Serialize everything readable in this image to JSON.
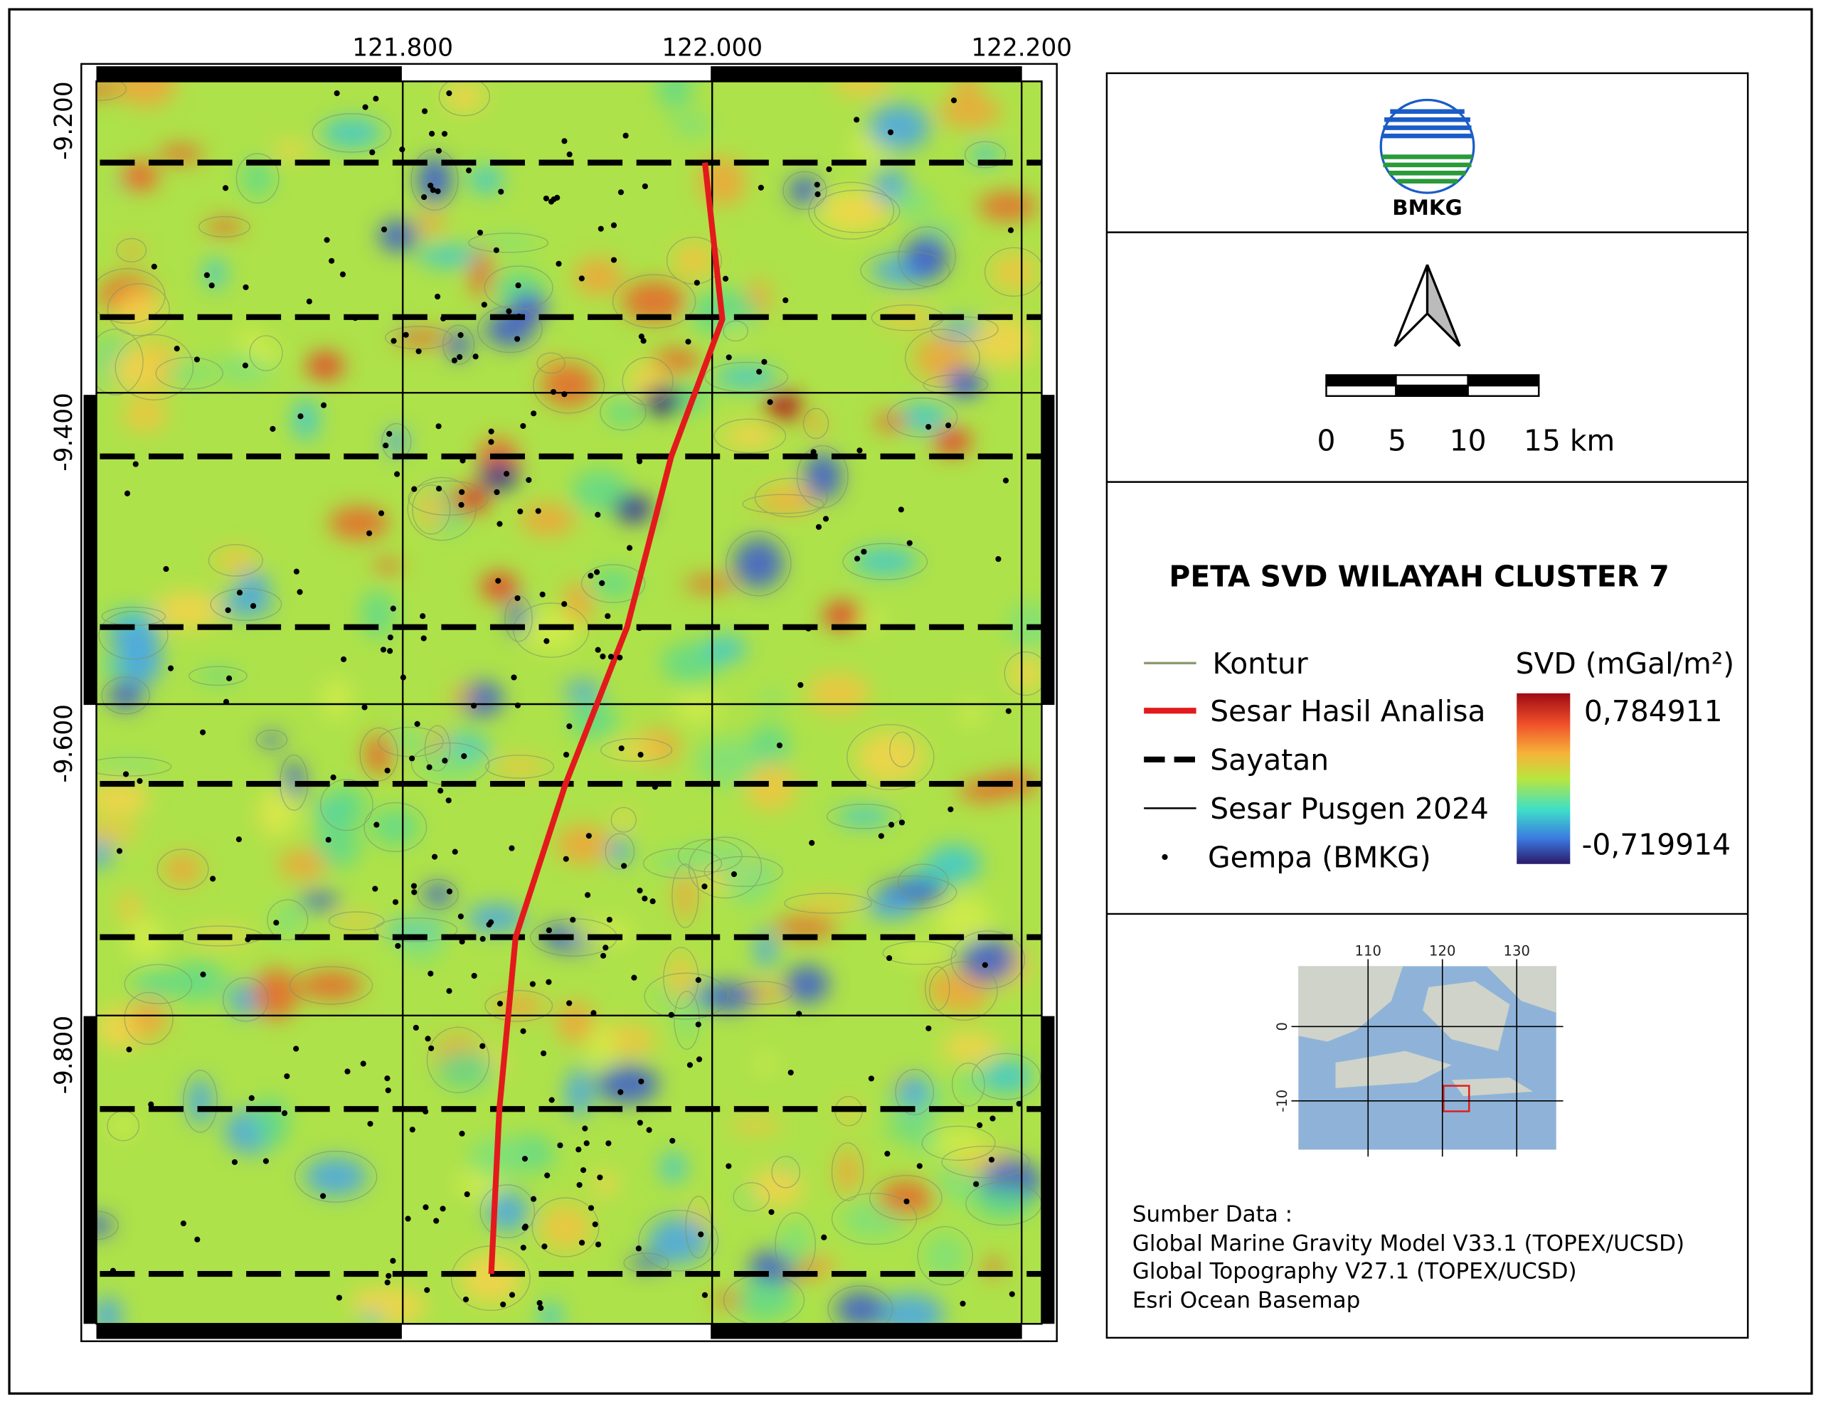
{
  "map": {
    "xlim": [
      121.602,
      122.213
    ],
    "ylim": [
      -9.2,
      -9.998
    ],
    "lon_ticks": [
      {
        "value": 121.8,
        "label": "121.800"
      },
      {
        "value": 122.0,
        "label": "122.000"
      },
      {
        "value": 122.2,
        "label": "122.200"
      }
    ],
    "lat_ticks": [
      {
        "value": -9.2,
        "label": "-9.200"
      },
      {
        "value": -9.4,
        "label": "-9.400"
      },
      {
        "value": -9.6,
        "label": "-9.600"
      },
      {
        "value": -9.8,
        "label": "-9.800"
      }
    ]
  },
  "logo": {
    "label": "BMKG"
  },
  "scale_bar": {
    "labels": [
      "0",
      "5",
      "10",
      "15 km"
    ]
  },
  "title": "PETA SVD WILAYAH CLUSTER 7",
  "legend": {
    "items": [
      "Kontur",
      "Sesar Hasil Analisa",
      "Sayatan",
      "Sesar Pusgen 2024",
      "Gempa (BMKG)"
    ],
    "colorbar": {
      "title": "SVD (mGal/m²)",
      "max": "0,784911",
      "min": "-0,719914"
    }
  },
  "inset": {
    "x_labels": [
      "110",
      "120",
      "130"
    ],
    "y_labels": [
      "0",
      "-10"
    ]
  },
  "source": {
    "heading": "Sumber Data :",
    "lines": [
      "Global Marine Gravity Model V33.1 (TOPEX/UCSD)",
      "Global Topography V27.1 (TOPEX/UCSD)",
      "Esri Ocean Basemap"
    ]
  }
}
